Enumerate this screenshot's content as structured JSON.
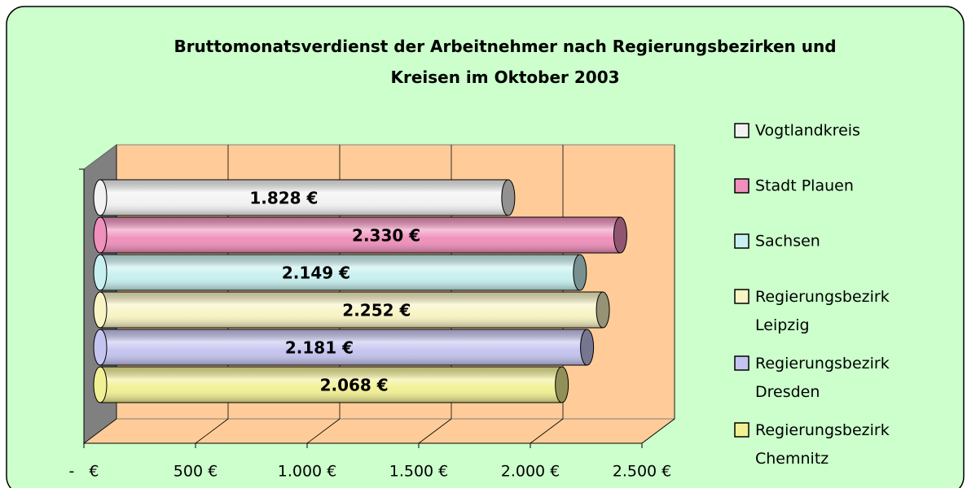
{
  "chart_data": {
    "type": "bar",
    "orientation": "horizontal",
    "style": "3d-cylinder",
    "title": "Bruttomonatsverdienst der Arbeitnehmer nach Regierungsbezirken und Kreisen im Oktober 2003",
    "series": [
      {
        "name": "Vogtlandkreis",
        "color": "#f2f2f2",
        "values": [
          1828
        ],
        "value_labels": [
          "1.828 €"
        ]
      },
      {
        "name": "Stadt Plauen",
        "color": "#f090bc",
        "values": [
          2330
        ],
        "value_labels": [
          "2.330 €"
        ]
      },
      {
        "name": "Sachsen",
        "color": "#c8f0f0",
        "values": [
          2149
        ],
        "value_labels": [
          "2.149 €"
        ]
      },
      {
        "name": "Regierungsbezirk Leipzig",
        "color": "#f8f4c4",
        "values": [
          2252
        ],
        "value_labels": [
          "2.252 €"
        ]
      },
      {
        "name": "Regierungsbezirk Dresden",
        "color": "#c4c4f0",
        "values": [
          2181
        ],
        "value_labels": [
          "2.181 €"
        ]
      },
      {
        "name": "Regierungsbezirk Chemnitz",
        "color": "#f2f094",
        "values": [
          2068
        ],
        "value_labels": [
          "2.068 €"
        ]
      }
    ],
    "xlim": [
      0,
      2500
    ],
    "xticks": [
      {
        "value": 0,
        "label": "-   €"
      },
      {
        "value": 500,
        "label": "500 €"
      },
      {
        "value": 1000,
        "label": "1.000 €"
      },
      {
        "value": 1500,
        "label": "1.500 €"
      },
      {
        "value": 2000,
        "label": "2.000 €"
      },
      {
        "value": 2500,
        "label": "2.500 €"
      }
    ],
    "grid": true,
    "legend": "right"
  }
}
